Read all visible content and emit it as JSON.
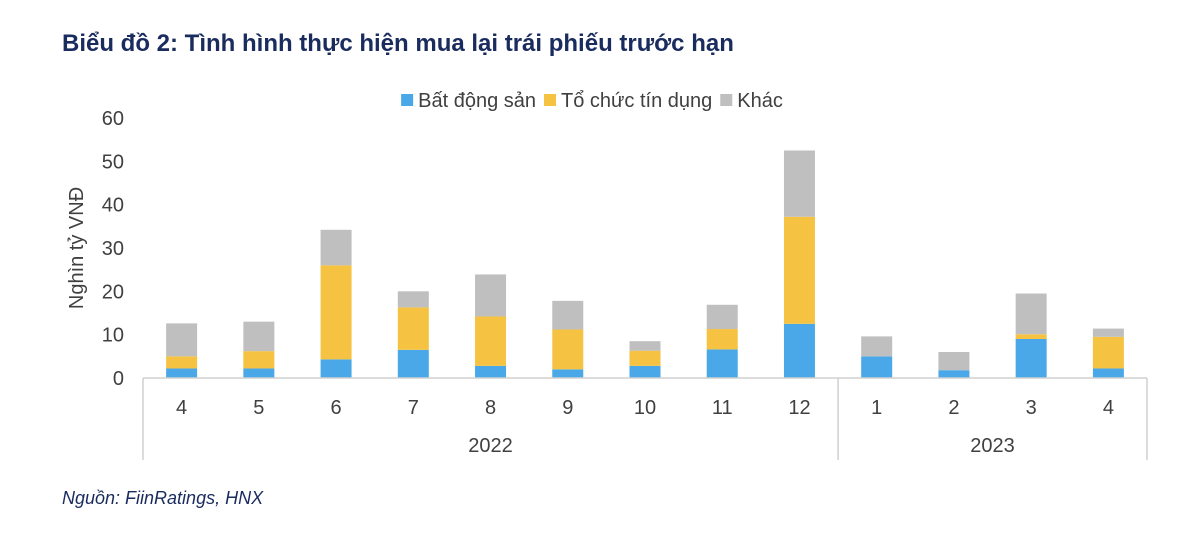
{
  "title": "Biểu đồ 2: Tình hình thực hiện mua lại trái phiếu trước hạn",
  "source": "Nguồn: FiinRatings, HNX",
  "chart_data": {
    "type": "bar",
    "stacked": true,
    "ylabel": "Nghìn tỷ VNĐ",
    "ylim": [
      0,
      60
    ],
    "yticks": [
      0,
      10,
      20,
      30,
      40,
      50,
      60
    ],
    "grid": false,
    "legend_position": "top",
    "categories": [
      "4",
      "5",
      "6",
      "7",
      "8",
      "9",
      "10",
      "11",
      "12",
      "1",
      "2",
      "3",
      "4"
    ],
    "groups": [
      {
        "label": "2022",
        "count": 9
      },
      {
        "label": "2023",
        "count": 4
      }
    ],
    "series": [
      {
        "name": "Bất động sản",
        "color": "#4aa8e8",
        "values": [
          2.2,
          2.2,
          4.3,
          6.5,
          2.8,
          2.0,
          2.8,
          6.6,
          12.5,
          5.0,
          1.8,
          9.0,
          2.2
        ]
      },
      {
        "name": "Tổ chức tín dụng",
        "color": "#f5c242",
        "values": [
          2.8,
          4.0,
          21.7,
          9.8,
          11.4,
          9.2,
          3.5,
          4.7,
          24.7,
          0.0,
          0.0,
          1.1,
          7.3
        ]
      },
      {
        "name": "Khác",
        "color": "#bfbfbf",
        "values": [
          7.6,
          6.8,
          8.2,
          3.7,
          9.7,
          6.6,
          2.2,
          5.6,
          15.3,
          4.6,
          4.2,
          9.4,
          1.9
        ]
      }
    ]
  }
}
